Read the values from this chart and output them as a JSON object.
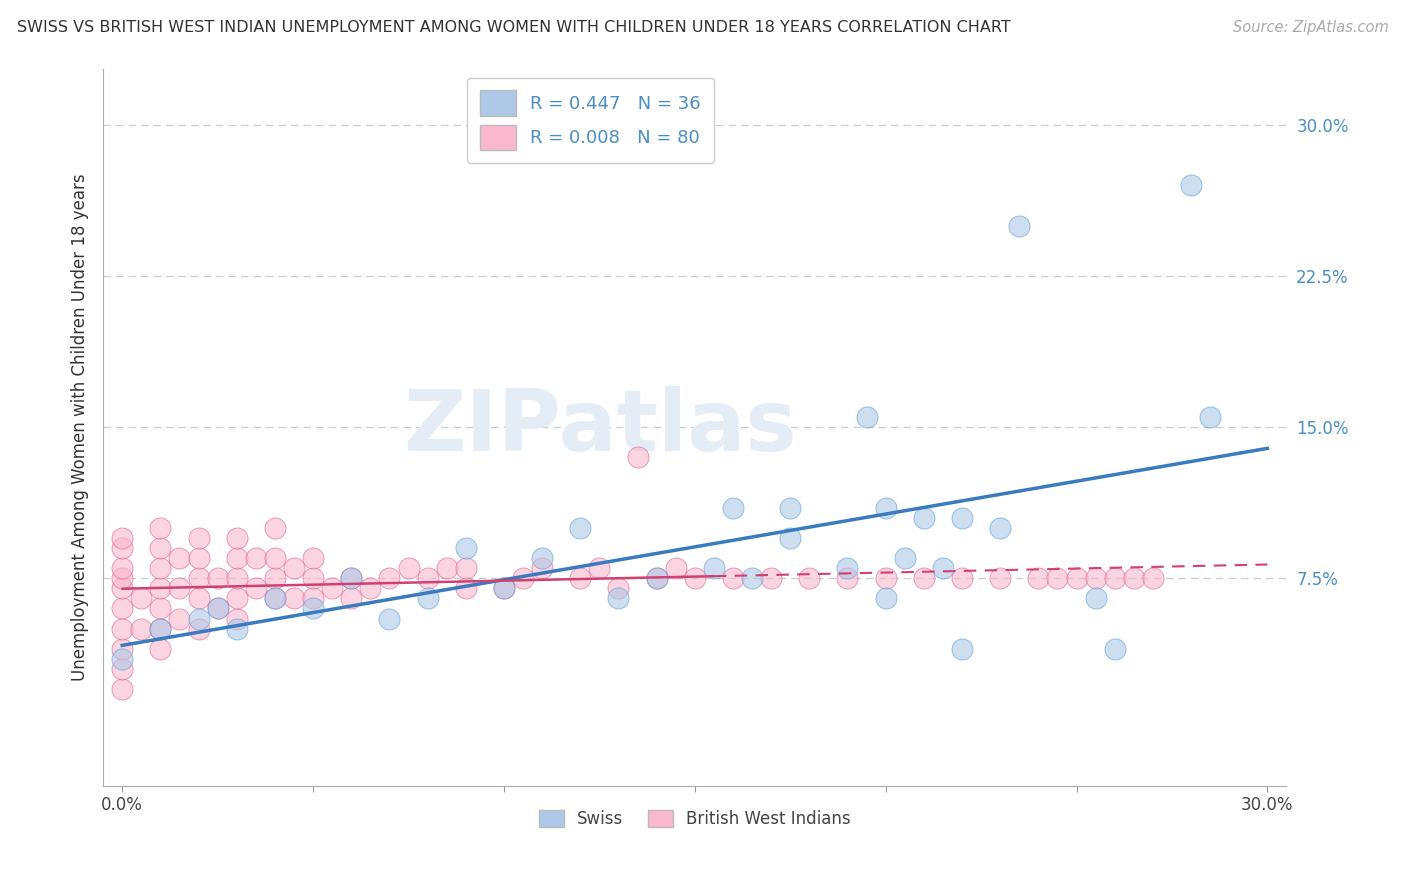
{
  "title": "SWISS VS BRITISH WEST INDIAN UNEMPLOYMENT AMONG WOMEN WITH CHILDREN UNDER 18 YEARS CORRELATION CHART",
  "source": "Source: ZipAtlas.com",
  "ylabel": "Unemployment Among Women with Children Under 18 years",
  "xlim": [
    -0.005,
    0.305
  ],
  "ylim": [
    -0.028,
    0.328
  ],
  "yticks_right": [
    0.075,
    0.15,
    0.225,
    0.3
  ],
  "ytick_right_labels": [
    "7.5%",
    "15.0%",
    "22.5%",
    "30.0%"
  ],
  "swiss_R": 0.447,
  "swiss_N": 36,
  "bwi_R": 0.008,
  "bwi_N": 80,
  "swiss_color": "#aec9e8",
  "swiss_edge": "#5a9fd4",
  "bwi_color": "#f9b8cd",
  "bwi_edge": "#e06090",
  "trend_swiss_color": "#3a7abf",
  "trend_bwi_color": "#d04070",
  "background_color": "#ffffff",
  "grid_color": "#cccccc",
  "title_fontsize": 12,
  "axis_fontsize": 12,
  "watermark_text": "ZIPatlas",
  "watermark_color": "#e4ecf5",
  "swiss_x": [
    0.0,
    0.01,
    0.02,
    0.025,
    0.03,
    0.04,
    0.05,
    0.06,
    0.07,
    0.08,
    0.09,
    0.1,
    0.11,
    0.12,
    0.13,
    0.14,
    0.155,
    0.16,
    0.175,
    0.19,
    0.195,
    0.2,
    0.205,
    0.21,
    0.215,
    0.22,
    0.23,
    0.235,
    0.2,
    0.22,
    0.255,
    0.26,
    0.28,
    0.285,
    0.165,
    0.175
  ],
  "swiss_y": [
    0.035,
    0.05,
    0.055,
    0.06,
    0.05,
    0.065,
    0.06,
    0.075,
    0.055,
    0.065,
    0.09,
    0.07,
    0.085,
    0.1,
    0.065,
    0.075,
    0.08,
    0.11,
    0.11,
    0.08,
    0.155,
    0.11,
    0.085,
    0.105,
    0.08,
    0.105,
    0.1,
    0.25,
    0.065,
    0.04,
    0.065,
    0.04,
    0.27,
    0.155,
    0.075,
    0.095
  ],
  "bwi_x": [
    0.0,
    0.0,
    0.0,
    0.0,
    0.0,
    0.0,
    0.0,
    0.0,
    0.0,
    0.0,
    0.005,
    0.005,
    0.01,
    0.01,
    0.01,
    0.01,
    0.01,
    0.01,
    0.01,
    0.015,
    0.015,
    0.015,
    0.02,
    0.02,
    0.02,
    0.02,
    0.02,
    0.025,
    0.025,
    0.03,
    0.03,
    0.03,
    0.03,
    0.03,
    0.035,
    0.035,
    0.04,
    0.04,
    0.04,
    0.04,
    0.045,
    0.045,
    0.05,
    0.05,
    0.05,
    0.055,
    0.06,
    0.06,
    0.065,
    0.07,
    0.075,
    0.08,
    0.085,
    0.09,
    0.09,
    0.1,
    0.105,
    0.11,
    0.12,
    0.125,
    0.13,
    0.135,
    0.14,
    0.145,
    0.15,
    0.16,
    0.17,
    0.18,
    0.19,
    0.2,
    0.21,
    0.22,
    0.23,
    0.24,
    0.245,
    0.25,
    0.255,
    0.26,
    0.265,
    0.27
  ],
  "bwi_y": [
    0.02,
    0.03,
    0.04,
    0.05,
    0.06,
    0.07,
    0.075,
    0.08,
    0.09,
    0.095,
    0.05,
    0.065,
    0.04,
    0.05,
    0.06,
    0.07,
    0.08,
    0.09,
    0.1,
    0.055,
    0.07,
    0.085,
    0.05,
    0.065,
    0.075,
    0.085,
    0.095,
    0.06,
    0.075,
    0.055,
    0.065,
    0.075,
    0.085,
    0.095,
    0.07,
    0.085,
    0.065,
    0.075,
    0.085,
    0.1,
    0.065,
    0.08,
    0.065,
    0.075,
    0.085,
    0.07,
    0.065,
    0.075,
    0.07,
    0.075,
    0.08,
    0.075,
    0.08,
    0.07,
    0.08,
    0.07,
    0.075,
    0.08,
    0.075,
    0.08,
    0.07,
    0.135,
    0.075,
    0.08,
    0.075,
    0.075,
    0.075,
    0.075,
    0.075,
    0.075,
    0.075,
    0.075,
    0.075,
    0.075,
    0.075,
    0.075,
    0.075,
    0.075,
    0.075,
    0.075
  ]
}
